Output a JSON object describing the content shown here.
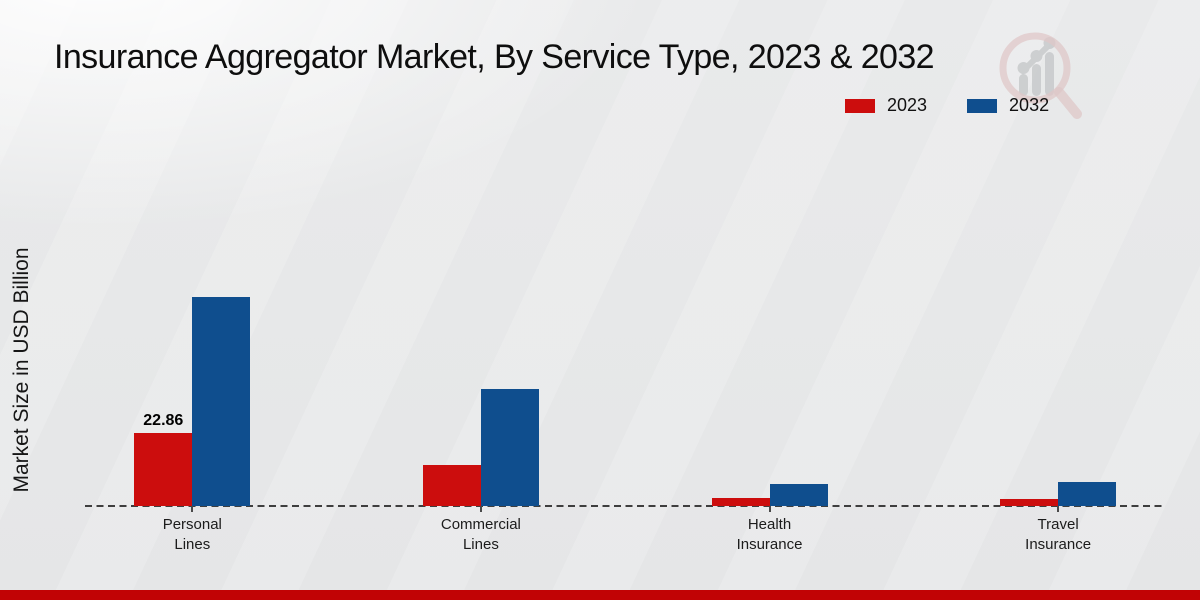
{
  "title": "Insurance Aggregator Market, By Service Type, 2023 & 2032",
  "watermark": {
    "icon": "magnifier-growth-chart-logo"
  },
  "footer": {
    "accent_color": "#c10305"
  },
  "chart_data": {
    "type": "bar",
    "title": "Insurance Aggregator Market, By Service Type, 2023 & 2032",
    "xlabel": "",
    "ylabel": "Market Size in USD Billion",
    "categories": [
      [
        "Personal",
        "Lines"
      ],
      [
        "Commercial",
        "Lines"
      ],
      [
        "Health",
        "Insurance"
      ],
      [
        "Travel",
        "Insurance"
      ]
    ],
    "series": [
      {
        "name": "2023",
        "color": "#cc0d0d",
        "values": [
          22.86,
          12.8,
          2.5,
          2.3
        ]
      },
      {
        "name": "2032",
        "color": "#0f4e8e",
        "values": [
          65.3,
          36.6,
          7.0,
          7.4
        ]
      }
    ],
    "bar_labels": [
      {
        "series_index": 0,
        "category_index": 0,
        "text": "22.86"
      }
    ],
    "ylim": [
      0,
      70
    ],
    "grid": false,
    "baseline_style": "dashed",
    "legend_position": "top-right"
  }
}
